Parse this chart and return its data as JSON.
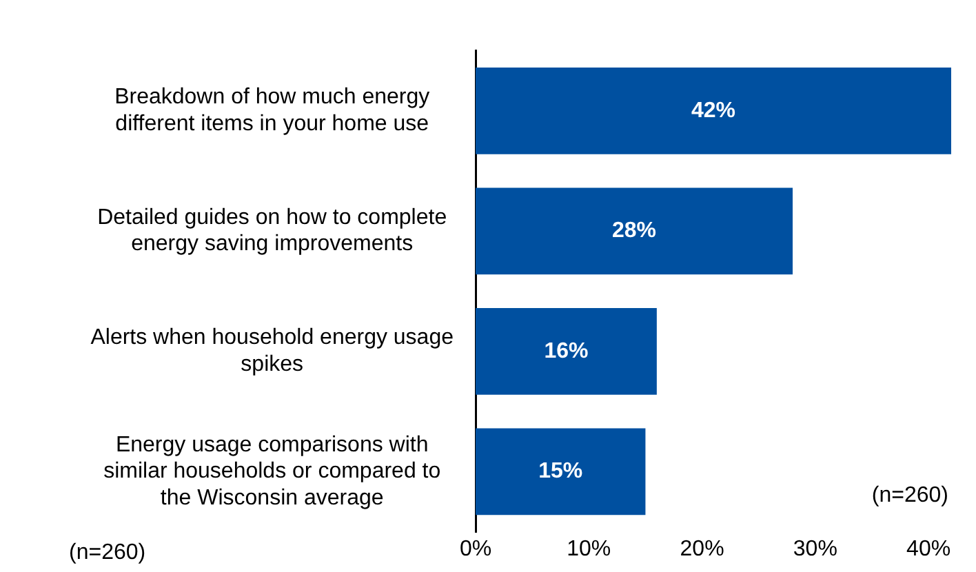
{
  "chart_data": {
    "type": "bar",
    "orientation": "horizontal",
    "categories": [
      "Breakdown of how much energy different items in your home use",
      "Detailed guides on how to complete energy saving improvements",
      "Alerts when household energy usage spikes",
      "Energy usage comparisons with similar households or compared to the Wisconsin average"
    ],
    "values": [
      42,
      28,
      16,
      15
    ],
    "value_labels": [
      "42%",
      "28%",
      "16%",
      "15%"
    ],
    "color": "#0050a0",
    "xlim": [
      0,
      42
    ],
    "xticks": [
      {
        "value": 0,
        "label": "0%"
      },
      {
        "value": 10,
        "label": "10%"
      },
      {
        "value": 20,
        "label": "20%"
      },
      {
        "value": 30,
        "label": "30%"
      },
      {
        "value": 40,
        "label": "40%"
      }
    ],
    "grid": false,
    "annotations": [
      "(n=260)",
      "(n=260)"
    ]
  }
}
